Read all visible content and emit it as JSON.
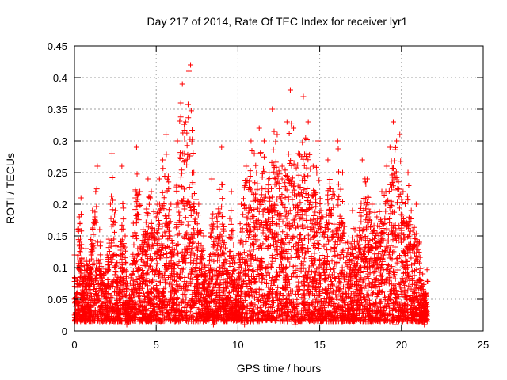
{
  "chart_data": {
    "type": "scatter",
    "title": "Day 217 of 2014, Rate Of TEC Index for receiver lyr1",
    "xlabel": "GPS time / hours",
    "ylabel": "ROTI / TECUs",
    "xlim": [
      0,
      25
    ],
    "ylim": [
      0,
      0.45
    ],
    "xticks": [
      0,
      5,
      10,
      15,
      20,
      25
    ],
    "xtick_labels": [
      "0",
      "5",
      "10",
      "15",
      "20",
      "25"
    ],
    "yticks": [
      0,
      0.05,
      0.1,
      0.15,
      0.2,
      0.25,
      0.3,
      0.35,
      0.4,
      0.45
    ],
    "ytick_labels": [
      "0",
      "0.05",
      "0.1",
      "0.15",
      "0.2",
      "0.25",
      "0.3",
      "0.35",
      "0.4",
      "0.45"
    ],
    "grid": true,
    "marker": "+",
    "series": [
      {
        "name": "ROTI",
        "color": "#ff0000",
        "points": [
          [
            0.0,
            0.12
          ],
          [
            0.1,
            0.05
          ],
          [
            0.2,
            0.16
          ],
          [
            0.3,
            0.18
          ],
          [
            0.4,
            0.21
          ],
          [
            0.5,
            0.08
          ],
          [
            0.7,
            0.13
          ],
          [
            0.9,
            0.11
          ],
          [
            1.1,
            0.19
          ],
          [
            1.3,
            0.22
          ],
          [
            1.4,
            0.26
          ],
          [
            1.6,
            0.14
          ],
          [
            1.8,
            0.09
          ],
          [
            2.0,
            0.12
          ],
          [
            2.2,
            0.2
          ],
          [
            2.3,
            0.28
          ],
          [
            2.5,
            0.19
          ],
          [
            2.7,
            0.06
          ],
          [
            2.9,
            0.26
          ],
          [
            3.1,
            0.15
          ],
          [
            3.3,
            0.04
          ],
          [
            3.6,
            0.17
          ],
          [
            3.8,
            0.29
          ],
          [
            4.0,
            0.22
          ],
          [
            4.2,
            0.16
          ],
          [
            4.5,
            0.24
          ],
          [
            4.7,
            0.22
          ],
          [
            5.0,
            0.18
          ],
          [
            5.2,
            0.24
          ],
          [
            5.4,
            0.27
          ],
          [
            5.6,
            0.31
          ],
          [
            5.9,
            0.2
          ],
          [
            6.1,
            0.12
          ],
          [
            6.3,
            0.3
          ],
          [
            6.5,
            0.36
          ],
          [
            6.6,
            0.39
          ],
          [
            6.8,
            0.33
          ],
          [
            7.0,
            0.41
          ],
          [
            7.1,
            0.42
          ],
          [
            7.3,
            0.25
          ],
          [
            7.6,
            0.2
          ],
          [
            7.9,
            0.15
          ],
          [
            8.1,
            0.07
          ],
          [
            8.4,
            0.24
          ],
          [
            8.7,
            0.18
          ],
          [
            9.0,
            0.29
          ],
          [
            9.3,
            0.11
          ],
          [
            9.6,
            0.22
          ],
          [
            9.9,
            0.08
          ],
          [
            10.2,
            0.2
          ],
          [
            10.5,
            0.26
          ],
          [
            10.8,
            0.3
          ],
          [
            11.0,
            0.28
          ],
          [
            11.3,
            0.32
          ],
          [
            11.6,
            0.3
          ],
          [
            11.9,
            0.25
          ],
          [
            12.1,
            0.35
          ],
          [
            12.4,
            0.31
          ],
          [
            12.7,
            0.26
          ],
          [
            13.0,
            0.33
          ],
          [
            13.2,
            0.38
          ],
          [
            13.4,
            0.32
          ],
          [
            13.7,
            0.28
          ],
          [
            14.0,
            0.37
          ],
          [
            14.3,
            0.33
          ],
          [
            14.6,
            0.26
          ],
          [
            14.9,
            0.3
          ],
          [
            15.2,
            0.18
          ],
          [
            15.5,
            0.27
          ],
          [
            15.8,
            0.22
          ],
          [
            16.1,
            0.3
          ],
          [
            16.4,
            0.25
          ],
          [
            16.7,
            0.14
          ],
          [
            17.0,
            0.19
          ],
          [
            17.3,
            0.15
          ],
          [
            17.6,
            0.27
          ],
          [
            17.9,
            0.24
          ],
          [
            18.2,
            0.2
          ],
          [
            18.5,
            0.18
          ],
          [
            18.8,
            0.22
          ],
          [
            19.1,
            0.26
          ],
          [
            19.3,
            0.29
          ],
          [
            19.5,
            0.33
          ],
          [
            19.7,
            0.3
          ],
          [
            19.9,
            0.31
          ],
          [
            20.1,
            0.22
          ],
          [
            20.4,
            0.25
          ],
          [
            20.6,
            0.19
          ],
          [
            20.9,
            0.2
          ],
          [
            21.1,
            0.14
          ],
          [
            21.3,
            0.09
          ],
          [
            21.5,
            0.06
          ],
          [
            0.3,
            0.03
          ],
          [
            0.8,
            0.04
          ],
          [
            1.5,
            0.03
          ],
          [
            2.4,
            0.02
          ],
          [
            3.2,
            0.01
          ],
          [
            4.1,
            0.03
          ],
          [
            5.5,
            0.02
          ],
          [
            6.4,
            0.04
          ],
          [
            7.7,
            0.03
          ],
          [
            8.5,
            0.01
          ],
          [
            9.4,
            0.02
          ],
          [
            10.4,
            0.01
          ],
          [
            11.5,
            0.03
          ],
          [
            12.5,
            0.04
          ],
          [
            13.5,
            0.01
          ],
          [
            14.5,
            0.02
          ],
          [
            15.6,
            0.03
          ],
          [
            16.5,
            0.02
          ],
          [
            17.5,
            0.04
          ],
          [
            18.6,
            0.03
          ],
          [
            19.6,
            0.01
          ],
          [
            20.5,
            0.02
          ],
          [
            21.4,
            0.01
          ]
        ]
      }
    ],
    "density_note_omitted": true
  }
}
